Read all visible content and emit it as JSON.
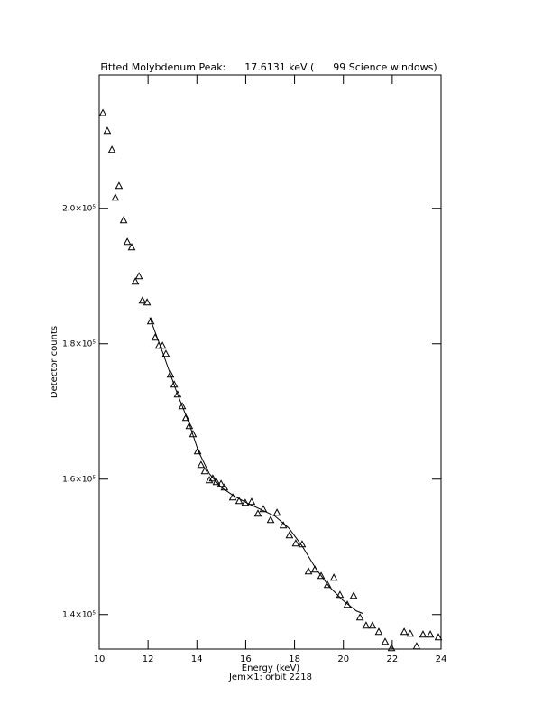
{
  "chart_data": {
    "type": "scatter",
    "title": "Fitted Molybdenum Peak:      17.6131 keV (      99 Science windows)",
    "subtitle": "Jem×1: orbit 2218",
    "x_label": "Energy (keV)",
    "y_label": "Detector counts",
    "xlim": [
      10,
      24
    ],
    "ylim": [
      134900,
      219700
    ],
    "xticks": [
      10,
      12,
      14,
      16,
      18,
      20,
      22,
      24
    ],
    "yticks": [
      {
        "value": 140000,
        "label": "1.4×10⁵"
      },
      {
        "value": 160000,
        "label": "1.6×10⁵"
      },
      {
        "value": 180000,
        "label": "1.8×10⁵"
      },
      {
        "value": 200000,
        "label": "2.0×10⁵"
      }
    ],
    "series": [
      {
        "type": "scatter",
        "color": "#000000",
        "x": [
          10.15,
          10.33,
          10.52,
          10.66,
          10.81,
          11.0,
          11.15,
          11.33,
          11.48,
          11.63,
          11.77,
          11.96,
          12.11,
          12.29,
          12.44,
          12.59,
          12.73,
          12.92,
          13.07,
          13.21,
          13.4,
          13.55,
          13.69,
          13.84,
          14.03,
          14.17,
          14.32,
          14.51,
          14.65,
          14.8,
          14.99,
          15.13,
          15.47,
          15.73,
          15.98,
          16.24,
          16.5,
          16.72,
          17.02,
          17.28,
          17.54,
          17.79,
          18.05,
          18.31,
          18.57,
          18.83,
          19.09,
          19.35,
          19.61,
          19.86,
          20.16,
          20.42,
          20.68,
          20.93,
          21.19,
          21.45,
          21.71,
          21.97,
          22.49,
          22.74,
          23.0,
          23.26,
          23.56,
          23.89
        ],
        "values": [
          214100,
          211470,
          208670,
          201600,
          203330,
          198270,
          195070,
          194270,
          189200,
          190000,
          186400,
          186130,
          183330,
          180930,
          179730,
          179730,
          178530,
          175470,
          174000,
          172530,
          170800,
          169070,
          167870,
          166670,
          164130,
          162130,
          161200,
          159870,
          160130,
          159600,
          159330,
          158800,
          157330,
          156800,
          156530,
          156670,
          154930,
          155600,
          154000,
          155070,
          153200,
          151730,
          150530,
          150400,
          146400,
          146670,
          145730,
          144400,
          145470,
          142930,
          141470,
          142800,
          139600,
          138400,
          138400,
          137470,
          136000,
          135070,
          137470,
          137200,
          135330,
          137070,
          137070,
          136670
        ]
      },
      {
        "type": "line",
        "color": "#000000",
        "x": [
          12.07,
          12.59,
          13.14,
          13.69,
          14.06,
          14.51,
          14.99,
          15.54,
          16.1,
          16.65,
          17.2,
          17.76,
          18.31,
          18.87,
          19.42,
          19.97,
          20.53,
          20.82
        ],
        "values": [
          183870,
          178800,
          173200,
          168130,
          164130,
          160800,
          158800,
          157470,
          156400,
          155470,
          154530,
          152800,
          150130,
          146800,
          144130,
          142130,
          140530,
          140130
        ]
      }
    ]
  }
}
